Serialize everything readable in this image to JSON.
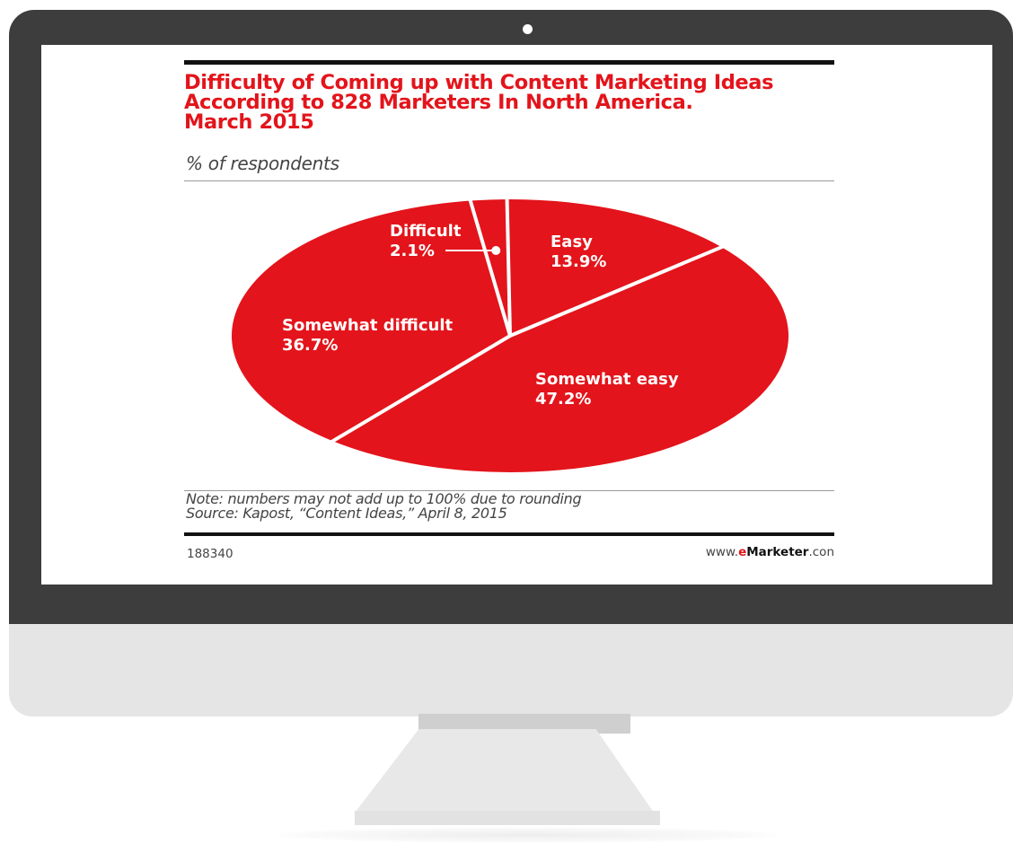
{
  "chart_data": {
    "type": "pie",
    "title": "Difficulty of Coming up with Content Marketing Ideas\nAccording to 828 Marketers In North America.\nMarch 2015",
    "subtitle": "% of respondents",
    "categories": [
      "Difficult",
      "Easy",
      "Somewhat easy",
      "Somewhat difficult"
    ],
    "values": [
      2.1,
      13.9,
      47.2,
      36.7
    ],
    "value_labels": [
      "2.1%",
      "13.9%",
      "47.2%",
      "36.7%"
    ],
    "note": "Note: numbers may not add up to 100% due to rounding\nSource: Kapost, “Content Ideas,” April 8, 2015",
    "chart_id": "188340",
    "colors": {
      "slice": "#e3141b",
      "text": "#ffffff",
      "title": "#e3141b"
    }
  },
  "branding": {
    "prefix": "www.",
    "e": "e",
    "name": "Marketer",
    "suffix": ".con"
  },
  "device": {
    "camera-icon": "camera-dot",
    "bezel_color": "#3d3d3d",
    "chin_color": "#e5e5e5"
  }
}
